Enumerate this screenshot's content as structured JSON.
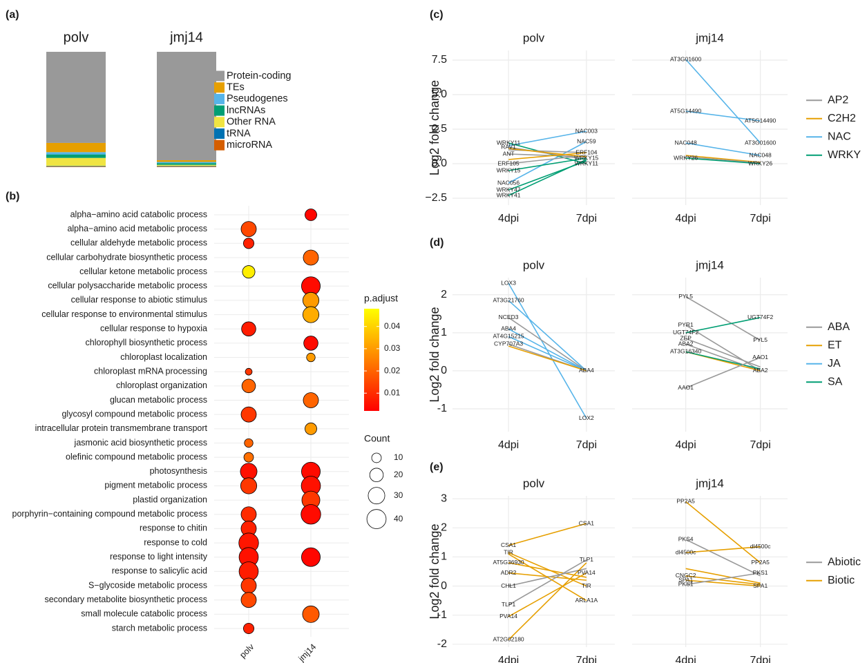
{
  "chart_data": [
    {
      "type": "stacked_bar",
      "panel": "(a)",
      "categories": [
        "polv",
        "jmj14"
      ],
      "series": [
        {
          "name": "Protein-coding",
          "color": "#999999",
          "values": [
            79,
            94
          ]
        },
        {
          "name": "TEs",
          "color": "#E69F00",
          "values": [
            8,
            1.5
          ]
        },
        {
          "name": "Pseudogenes",
          "color": "#56B4E9",
          "values": [
            2,
            1
          ]
        },
        {
          "name": "lncRNAs",
          "color": "#009E73",
          "values": [
            3,
            1.5
          ]
        },
        {
          "name": "Other RNA",
          "color": "#F0E442",
          "values": [
            7,
            1
          ]
        },
        {
          "name": "tRNA",
          "color": "#0072B2",
          "values": [
            0.5,
            0.5
          ]
        },
        {
          "name": "microRNA",
          "color": "#D55E00",
          "values": [
            0.5,
            0.5
          ]
        }
      ]
    },
    {
      "type": "dot",
      "panel": "(b)",
      "categories": [
        "alpha−amino acid catabolic process",
        "alpha−amino acid metabolic process",
        "cellular aldehyde metabolic process",
        "cellular carbohydrate biosynthetic process",
        "cellular ketone metabolic process",
        "cellular polysaccharide metabolic process",
        "cellular response to abiotic stimulus",
        "cellular response to environmental stimulus",
        "cellular response to hypoxia",
        "chlorophyll biosynthetic process",
        "chloroplast localization",
        "chloroplast mRNA processing",
        "chloroplast organization",
        "glucan metabolic process",
        "glycosyl compound metabolic process",
        "intracellular protein transmembrane transport",
        "jasmonic acid biosynthetic process",
        "olefinic compound metabolic process",
        "photosynthesis",
        "pigment metabolic process",
        "plastid organization",
        "porphyrin−containing compound metabolic process",
        "response to chitin",
        "response to cold",
        "response to light intensity",
        "response to salicylic acid",
        "S−glycoside metabolic process",
        "secondary metabolite biosynthetic process",
        "small molecule catabolic process",
        "starch metabolic process"
      ],
      "series": [
        {
          "name": "polv",
          "count": [
            null,
            25,
            12,
            null,
            17,
            null,
            null,
            null,
            22,
            null,
            null,
            5,
            20,
            null,
            25,
            null,
            8,
            10,
            30,
            28,
            null,
            25,
            25,
            42,
            40,
            40,
            25,
            25,
            null,
            12
          ],
          "p_adjust": [
            null,
            0.015,
            0.008,
            null,
            0.045,
            null,
            null,
            null,
            0.007,
            null,
            null,
            0.012,
            0.02,
            null,
            0.012,
            null,
            0.02,
            0.022,
            0.005,
            0.012,
            null,
            0.01,
            0.008,
            0.006,
            0.005,
            0.007,
            0.012,
            0.015,
            null,
            0.008
          ]
        },
        {
          "name": "jmj14",
          "count": [
            15,
            null,
            null,
            25,
            null,
            38,
            28,
            28,
            null,
            22,
            8,
            null,
            null,
            25,
            null,
            15,
            null,
            null,
            38,
            40,
            35,
            42,
            null,
            null,
            38,
            null,
            null,
            null,
            30,
            null
          ],
          "p_adjust": [
            0.003,
            null,
            null,
            0.02,
            null,
            0.004,
            0.03,
            0.033,
            null,
            0.004,
            0.03,
            null,
            null,
            0.02,
            null,
            0.03,
            null,
            null,
            0.004,
            0.005,
            0.012,
            0.004,
            null,
            null,
            0.003,
            null,
            null,
            null,
            0.018,
            null
          ]
        }
      ],
      "color_legend": {
        "title": "p.adjust",
        "clim": [
          0.002,
          0.048
        ],
        "ticks": [
          0.01,
          0.02,
          0.03,
          0.04
        ],
        "colors": [
          "#ff0000",
          "#ffff00"
        ]
      },
      "size_legend": {
        "title": "Count",
        "ticks": [
          10,
          20,
          30,
          40
        ]
      }
    },
    {
      "type": "slope",
      "panel": "(c)",
      "categories": [
        "4dpi",
        "7dpi"
      ],
      "y_label": "Log2 fold change",
      "ylim": [
        -3,
        8.2
      ],
      "yticks": [
        {
          "value": -2.5,
          "label": "−2.5"
        },
        {
          "value": 0,
          "label": "0.0"
        },
        2.5,
        {
          "value": 5,
          "label": "5.0"
        },
        7.5
      ],
      "grid": true,
      "legend": [
        {
          "name": "AP2",
          "color": "#999999"
        },
        {
          "name": "C2H2",
          "color": "#E69F00"
        },
        {
          "name": "NAC",
          "color": "#56B4E9"
        },
        {
          "name": "WRKY",
          "color": "#009E73"
        }
      ],
      "facets": [
        {
          "title": "polv",
          "lines": [
            {
              "group": "NAC",
              "values": [
                1.3,
                2.35
              ],
              "labels": [
                null,
                "NAC003"
              ]
            },
            {
              "group": "NAC",
              "values": [
                -1.4,
                1.6
              ],
              "labels": [
                "NAC056",
                "NAC59"
              ]
            },
            {
              "group": "WRKY",
              "values": [
                1.5,
                0
              ],
              "labels": [
                "WRKY11",
                "WRKY11"
              ]
            },
            {
              "group": "AP2",
              "values": [
                1.2,
                0.3
              ],
              "labels": [
                "RAV1",
                null
              ]
            },
            {
              "group": "AP2",
              "values": [
                0.7,
                0.5
              ],
              "labels": [
                "ANT",
                null
              ]
            },
            {
              "group": "AP2",
              "values": [
                0,
                0.6
              ],
              "labels": [
                "ERF105",
                null
              ]
            },
            {
              "group": "AP2",
              "values": [
                1,
                0.8
              ],
              "labels": [
                null,
                "ERF104"
              ]
            },
            {
              "group": "C2H2",
              "values": [
                1.1,
                0.5
              ],
              "labels": [
                null,
                null
              ]
            },
            {
              "group": "C2H2",
              "values": [
                0.3,
                0.8
              ],
              "labels": [
                null,
                null
              ]
            },
            {
              "group": "WRKY",
              "values": [
                -0.5,
                0.4
              ],
              "labels": [
                "WRKY15",
                "WRKY15"
              ]
            },
            {
              "group": "WRKY",
              "values": [
                -1.9,
                0.2
              ],
              "labels": [
                "WRKY47",
                null
              ]
            },
            {
              "group": "WRKY",
              "values": [
                -2.3,
                0.3
              ],
              "labels": [
                "WRKY41",
                null
              ]
            }
          ]
        },
        {
          "title": "jmj14",
          "lines": [
            {
              "group": "NAC",
              "values": [
                7.55,
                1.5
              ],
              "labels": [
                "AT3G01600",
                "AT3G01600"
              ]
            },
            {
              "group": "NAC",
              "values": [
                3.8,
                3.1
              ],
              "labels": [
                "AT5G14490",
                "AT5G14490"
              ]
            },
            {
              "group": "NAC",
              "values": [
                1.5,
                0.6
              ],
              "labels": [
                "NAC048",
                "NAC048"
              ]
            },
            {
              "group": "C2H2",
              "values": [
                0.6,
                0.1
              ],
              "labels": [
                null,
                null
              ]
            },
            {
              "group": "AP2",
              "values": [
                0.5,
                0.05
              ],
              "labels": [
                null,
                null
              ]
            },
            {
              "group": "WRKY",
              "values": [
                0.4,
                0
              ],
              "labels": [
                "WRKY26",
                "WRKY26"
              ]
            }
          ]
        }
      ]
    },
    {
      "type": "slope",
      "panel": "(d)",
      "categories": [
        "4dpi",
        "7dpi"
      ],
      "y_label": "Log2 fold change",
      "ylim": [
        -1.6,
        2.45
      ],
      "yticks": [
        -1,
        0,
        1,
        2
      ],
      "grid": true,
      "legend": [
        {
          "name": "ABA",
          "color": "#999999"
        },
        {
          "name": "ET",
          "color": "#E69F00"
        },
        {
          "name": "JA",
          "color": "#56B4E9"
        },
        {
          "name": "SA",
          "color": "#009E73"
        }
      ],
      "facets": [
        {
          "title": "polv",
          "lines": [
            {
              "group": "JA",
              "values": [
                2.3,
                -1.25
              ],
              "labels": [
                "LOX3",
                "LOX2"
              ]
            },
            {
              "group": "JA",
              "values": [
                1.85,
                0
              ],
              "labels": [
                "AT3G21760",
                null
              ]
            },
            {
              "group": "ABA",
              "values": [
                1.4,
                0
              ],
              "labels": [
                "NCED3",
                null
              ]
            },
            {
              "group": "JA",
              "values": [
                1.1,
                0
              ],
              "labels": [
                "ABA4",
                "ABA4"
              ]
            },
            {
              "group": "JA",
              "values": [
                0.9,
                0
              ],
              "labels": [
                "AT4G15215",
                null
              ]
            },
            {
              "group": "ABA",
              "values": [
                0.7,
                0
              ],
              "labels": [
                "CYP707A3",
                null
              ]
            },
            {
              "group": "ET",
              "values": [
                0.65,
                0
              ],
              "labels": [
                null,
                null
              ]
            }
          ]
        },
        {
          "title": "jmj14",
          "lines": [
            {
              "group": "ABA",
              "values": [
                1.95,
                0.8
              ],
              "labels": [
                "PYL5",
                "PYL5"
              ]
            },
            {
              "group": "ABA",
              "values": [
                1.2,
                0
              ],
              "labels": [
                "PYR1",
                null
              ]
            },
            {
              "group": "SA",
              "values": [
                1,
                1.4
              ],
              "labels": [
                "UGT74F2",
                "UGT74F2"
              ]
            },
            {
              "group": "ABA",
              "values": [
                0.85,
                0.1
              ],
              "labels": [
                "ZEP",
                null
              ]
            },
            {
              "group": "ABA",
              "values": [
                0.7,
                0
              ],
              "labels": [
                "ABA2",
                "ABA2"
              ]
            },
            {
              "group": "ET",
              "values": [
                0.5,
                0
              ],
              "labels": [
                "AT3G16340",
                null
              ]
            },
            {
              "group": "SA",
              "values": [
                0.5,
                0.05
              ],
              "labels": [
                null,
                null
              ]
            },
            {
              "group": "ABA",
              "values": [
                -0.45,
                0.35
              ],
              "labels": [
                "AAO1",
                "AAO1"
              ]
            }
          ]
        }
      ]
    },
    {
      "type": "slope",
      "panel": "(e)",
      "categories": [
        "4dpi",
        "7dpi"
      ],
      "y_label": "Log2 fold change",
      "ylim": [
        -2.1,
        3.1
      ],
      "yticks": [
        -2,
        -1,
        0,
        1,
        2,
        3
      ],
      "grid": true,
      "legend": [
        {
          "name": "Abiotic",
          "color": "#999999"
        },
        {
          "name": "Biotic",
          "color": "#E69F00"
        }
      ],
      "facets": [
        {
          "title": "polv",
          "lines": [
            {
              "group": "Biotic",
              "values": [
                1.4,
                2.15
              ],
              "labels": [
                "CSA1",
                "CSA1"
              ]
            },
            {
              "group": "Biotic",
              "values": [
                1.15,
                0
              ],
              "labels": [
                "TIR",
                "TIR"
              ]
            },
            {
              "group": "Biotic",
              "values": [
                0.8,
                0.3
              ],
              "labels": [
                "AT5G36930",
                null
              ]
            },
            {
              "group": "Biotic",
              "values": [
                0.45,
                0.2
              ],
              "labels": [
                "ADR2",
                null
              ]
            },
            {
              "group": "Abiotic",
              "values": [
                0,
                0.6
              ],
              "labels": [
                "CHL1",
                null
              ]
            },
            {
              "group": "Abiotic",
              "values": [
                -0.65,
                0.9
              ],
              "labels": [
                "TLP1",
                "TLP1"
              ]
            },
            {
              "group": "Biotic",
              "values": [
                -1.05,
                0.45
              ],
              "labels": [
                "PVA14",
                "PVA14"
              ]
            },
            {
              "group": "Biotic",
              "values": [
                1.1,
                -0.5
              ],
              "labels": [
                null,
                "ARLA1A"
              ]
            },
            {
              "group": "Biotic",
              "values": [
                -1.85,
                0.8
              ],
              "labels": [
                "AT2G02180",
                null
              ]
            }
          ]
        },
        {
          "title": "jmj14",
          "lines": [
            {
              "group": "Biotic",
              "values": [
                2.9,
                0.8
              ],
              "labels": [
                "PP2A5",
                "PP2A5"
              ]
            },
            {
              "group": "Abiotic",
              "values": [
                1.6,
                0.35
              ],
              "labels": [
                "PKS4",
                null
              ]
            },
            {
              "group": "Biotic",
              "values": [
                1.15,
                1.35
              ],
              "labels": [
                "dl4500c",
                "dl4500c"
              ]
            },
            {
              "group": "Biotic",
              "values": [
                0.6,
                0.1
              ],
              "labels": [
                null,
                null
              ]
            },
            {
              "group": "Biotic",
              "values": [
                0.35,
                0.05
              ],
              "labels": [
                "CNGC2",
                null
              ]
            },
            {
              "group": "Biotic",
              "values": [
                0.2,
                0
              ],
              "labels": [
                "SPA1",
                "SPA1"
              ]
            },
            {
              "group": "Abiotic",
              "values": [
                0.05,
                0.45
              ],
              "labels": [
                "PKS1",
                "PKS1"
              ]
            }
          ]
        }
      ]
    }
  ]
}
